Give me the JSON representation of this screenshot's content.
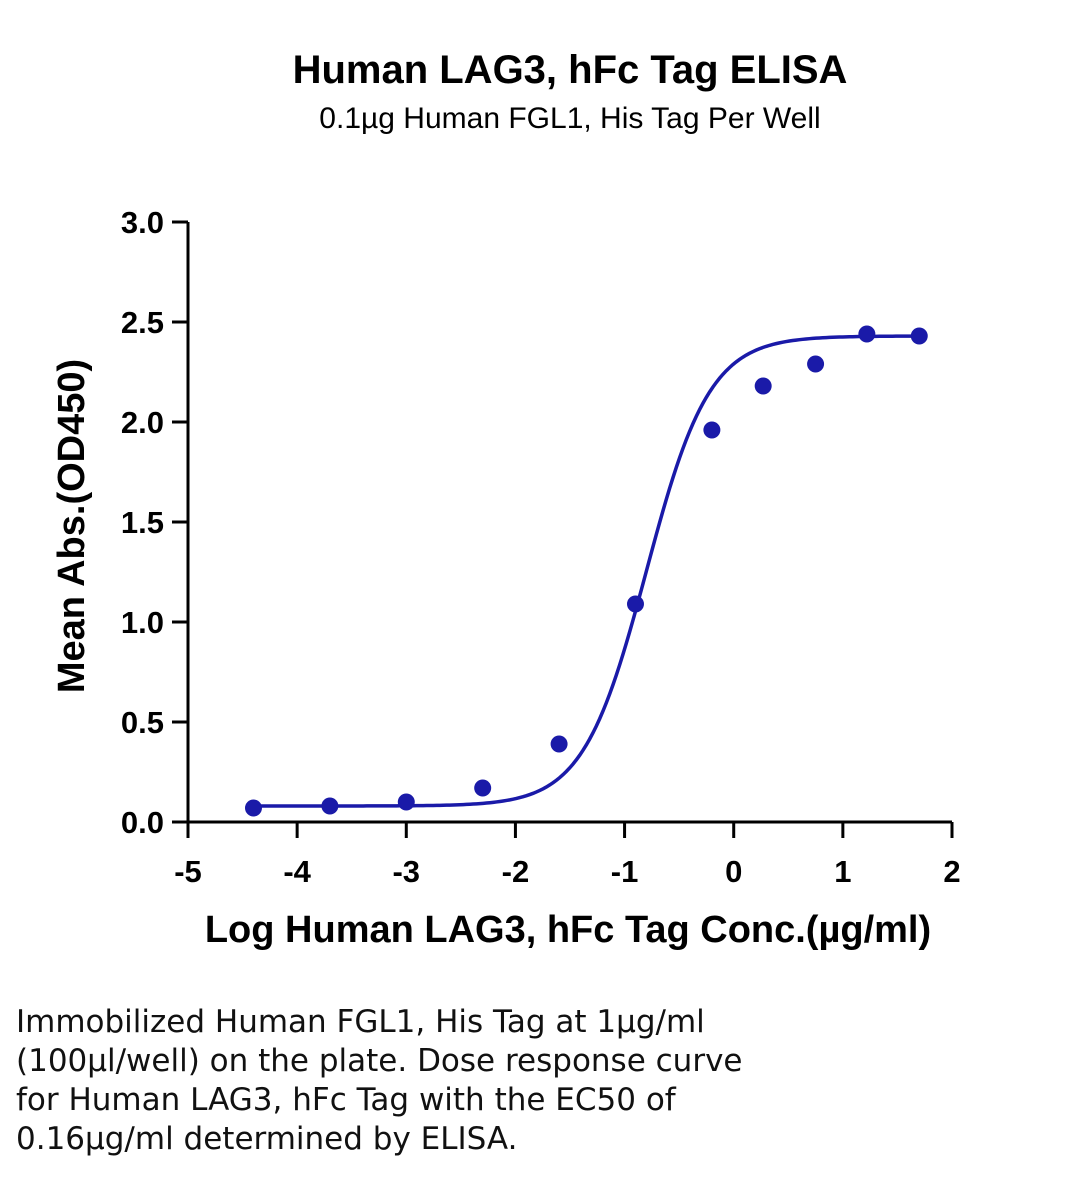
{
  "chart_data": {
    "type": "scatter",
    "title": "Human LAG3, hFc Tag ELISA",
    "subtitle": "0.1µg Human FGL1, His Tag Per Well",
    "xlabel": "Log Human LAG3, hFc Tag Conc.(µg/ml)",
    "ylabel": "Mean Abs.(OD450)",
    "xlim": [
      -5,
      2
    ],
    "ylim": [
      0,
      3.0
    ],
    "x_ticks": [
      "-5",
      "-4",
      "-3",
      "-2",
      "-1",
      "0",
      "1",
      "2"
    ],
    "y_ticks": [
      "0.0",
      "0.5",
      "1.0",
      "1.5",
      "2.0",
      "2.5",
      "3.0"
    ],
    "grid": false,
    "series": [
      {
        "x": [
          -4.4,
          -3.7,
          -3.0,
          -2.3,
          -1.6,
          -0.9,
          -0.2,
          0.27,
          0.75,
          1.22,
          1.7
        ],
        "y": [
          0.07,
          0.08,
          0.1,
          0.17,
          0.39,
          1.09,
          1.96,
          2.18,
          2.29,
          2.44,
          2.43
        ],
        "color": "#1a1aa8"
      }
    ],
    "fit_curve": {
      "model": "4PL",
      "bottom": 0.08,
      "top": 2.43,
      "log_ec50": -0.8,
      "hill_slope": 1.5,
      "color": "#1a1aa8"
    }
  },
  "caption": "Immobilized Human FGL1, His Tag at 1µg/ml\n(100µl/well) on the plate. Dose response curve\nfor Human LAG3, hFc Tag with the EC50 of\n0.16µg/ml determined by ELISA."
}
